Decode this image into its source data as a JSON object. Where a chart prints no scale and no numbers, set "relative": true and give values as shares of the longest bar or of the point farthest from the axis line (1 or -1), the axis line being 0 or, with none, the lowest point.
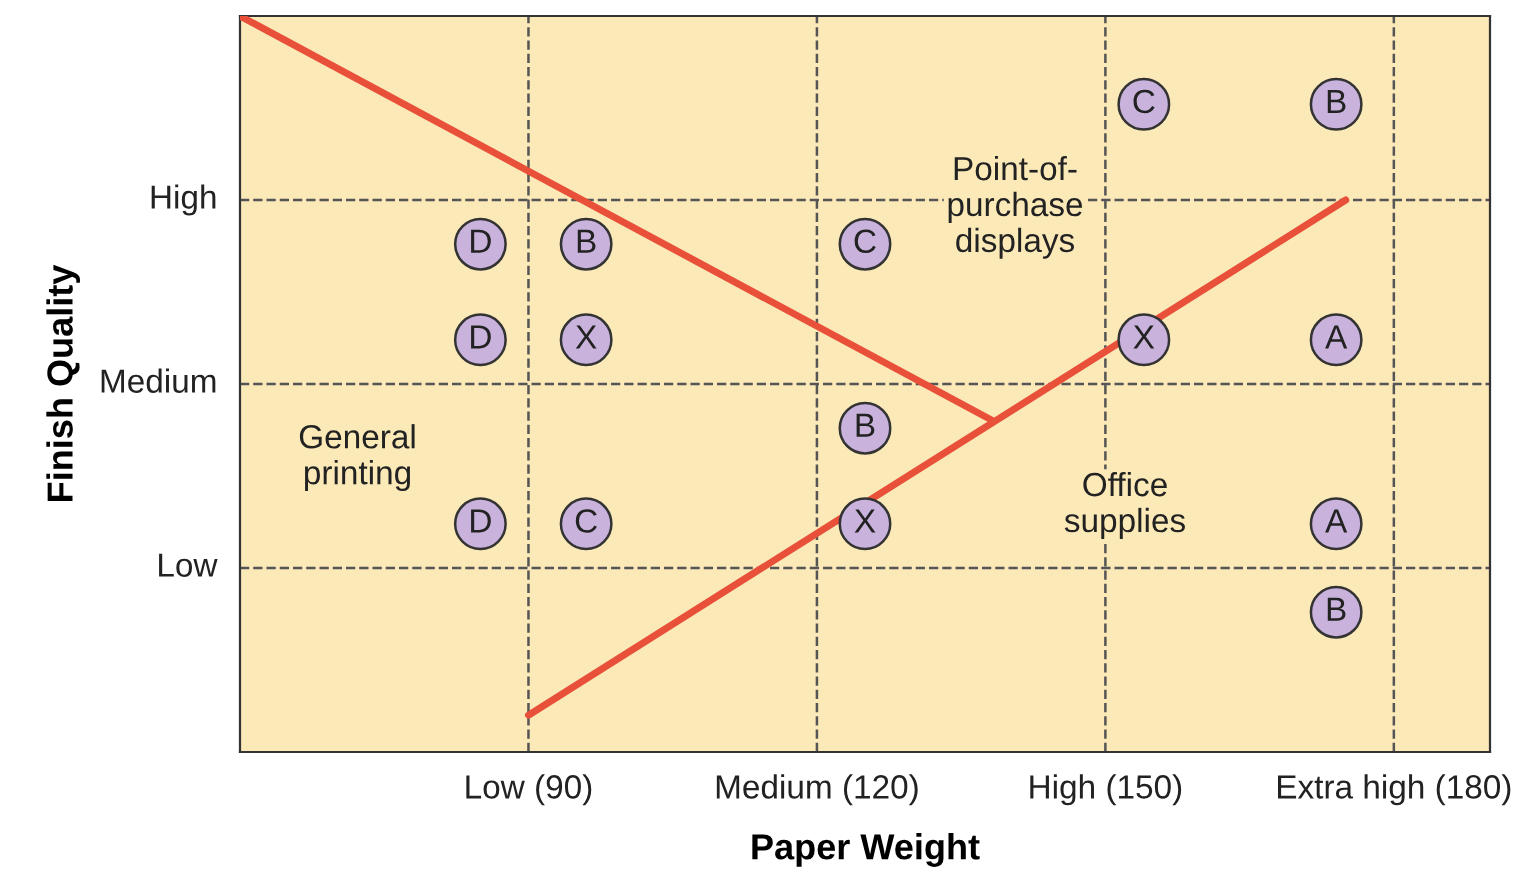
{
  "chart_data": {
    "type": "scatter",
    "xlabel": "Paper Weight",
    "ylabel": "Finish Quality",
    "xlim": [
      60,
      190
    ],
    "relative": true,
    "xticks": [
      {
        "value": 90,
        "label": "Low (90)"
      },
      {
        "value": 120,
        "label": "Medium (120)"
      },
      {
        "value": 150,
        "label": "High (150)"
      },
      {
        "value": 180,
        "label": "Extra high (180)"
      }
    ],
    "grid": true,
    "series": [
      {
        "name": "A",
        "color": "#c9b3dc",
        "marker": "circle",
        "x": [
          174,
          174
        ],
        "values": [
          0.56,
          0.31
        ]
      },
      {
        "name": "B",
        "color": "#c9b3dc",
        "marker": "circle",
        "x": [
          96,
          174,
          125,
          174
        ],
        "values": [
          0.69,
          0.88,
          0.44,
          0.19
        ]
      },
      {
        "name": "C",
        "color": "#c9b3dc",
        "marker": "circle",
        "x": [
          125,
          154,
          96
        ],
        "values": [
          0.69,
          0.88,
          0.31
        ]
      },
      {
        "name": "D",
        "color": "#c9b3dc",
        "marker": "circle",
        "x": [
          85,
          85,
          85
        ],
        "values": [
          0.69,
          0.56,
          0.31
        ]
      },
      {
        "name": "X",
        "color": "#c9b3dc",
        "marker": "circle",
        "x": [
          96,
          154,
          125
        ],
        "values": [
          0.56,
          0.56,
          0.31
        ]
      },
      {
        "type": "line",
        "color": "#e8503a",
        "x": [
          60,
          138.3
        ],
        "values": [
          1.0,
          0.45
        ]
      },
      {
        "type": "line",
        "color": "#e8503a",
        "x": [
          90,
          175
        ],
        "values": [
          0.05,
          0.75
        ]
      }
    ],
    "annotations": [
      "High",
      "Medium",
      "Low",
      "Point-of-\npurchase\ndisplays",
      "General\nprinting",
      "Office\nsupplies"
    ]
  }
}
